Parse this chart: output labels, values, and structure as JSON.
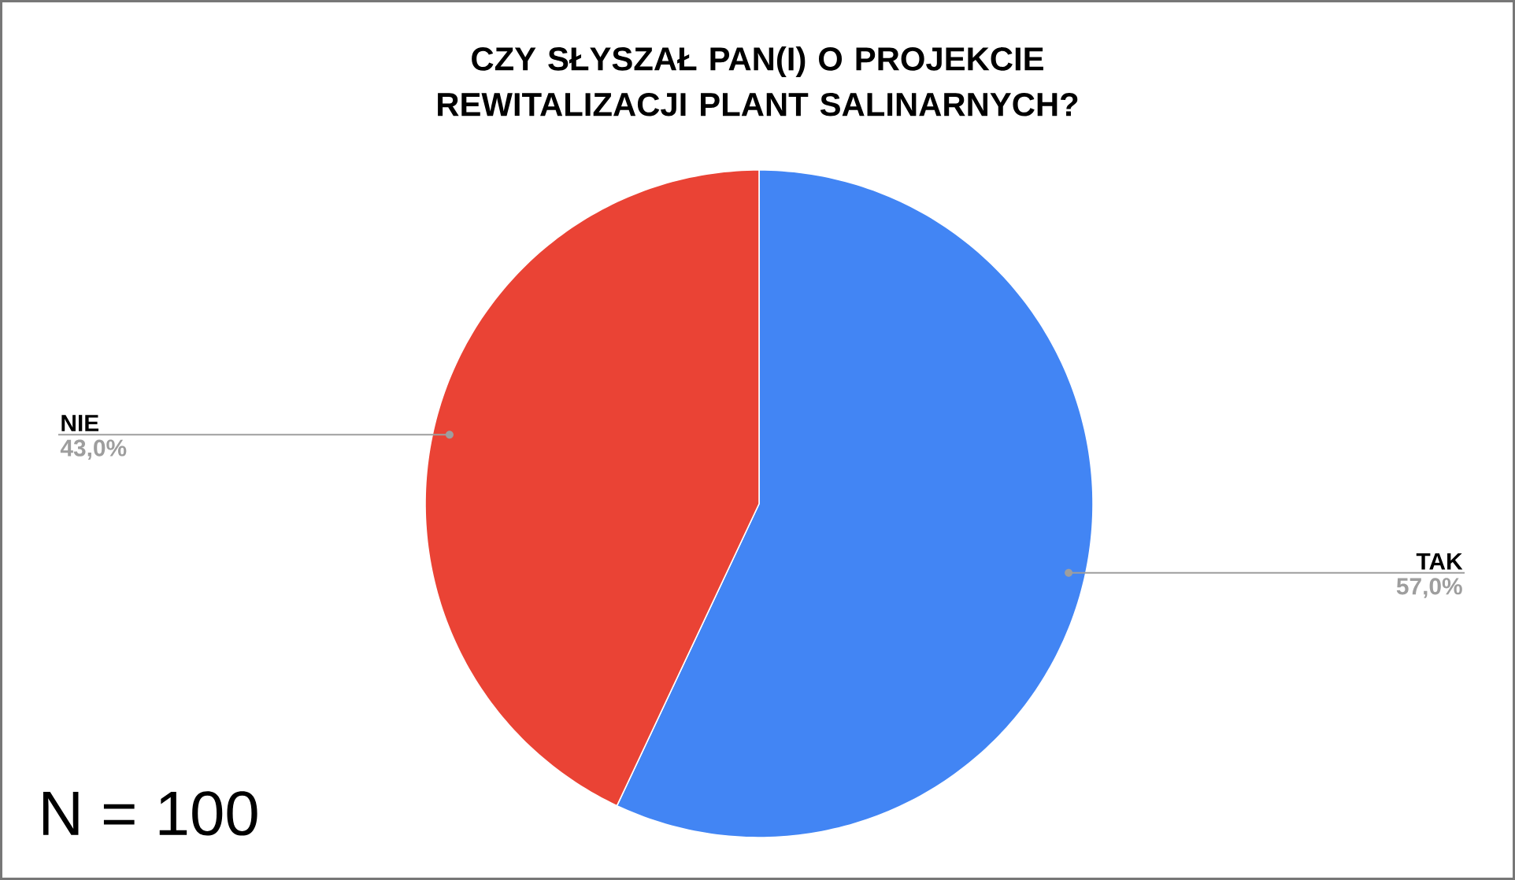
{
  "chart_data": {
    "type": "pie",
    "title": "CZY SŁYSZAŁ PAN(I) O PROJEKCIE REWITALIZACJI PLANT SALINARNYCH?",
    "categories": [
      "TAK",
      "NIE"
    ],
    "values": [
      57,
      43
    ],
    "colors": [
      "#4285f4",
      "#ea4335"
    ],
    "value_labels": [
      "57,0%",
      "43,0%"
    ],
    "annotations": [
      "N = 100"
    ]
  }
}
